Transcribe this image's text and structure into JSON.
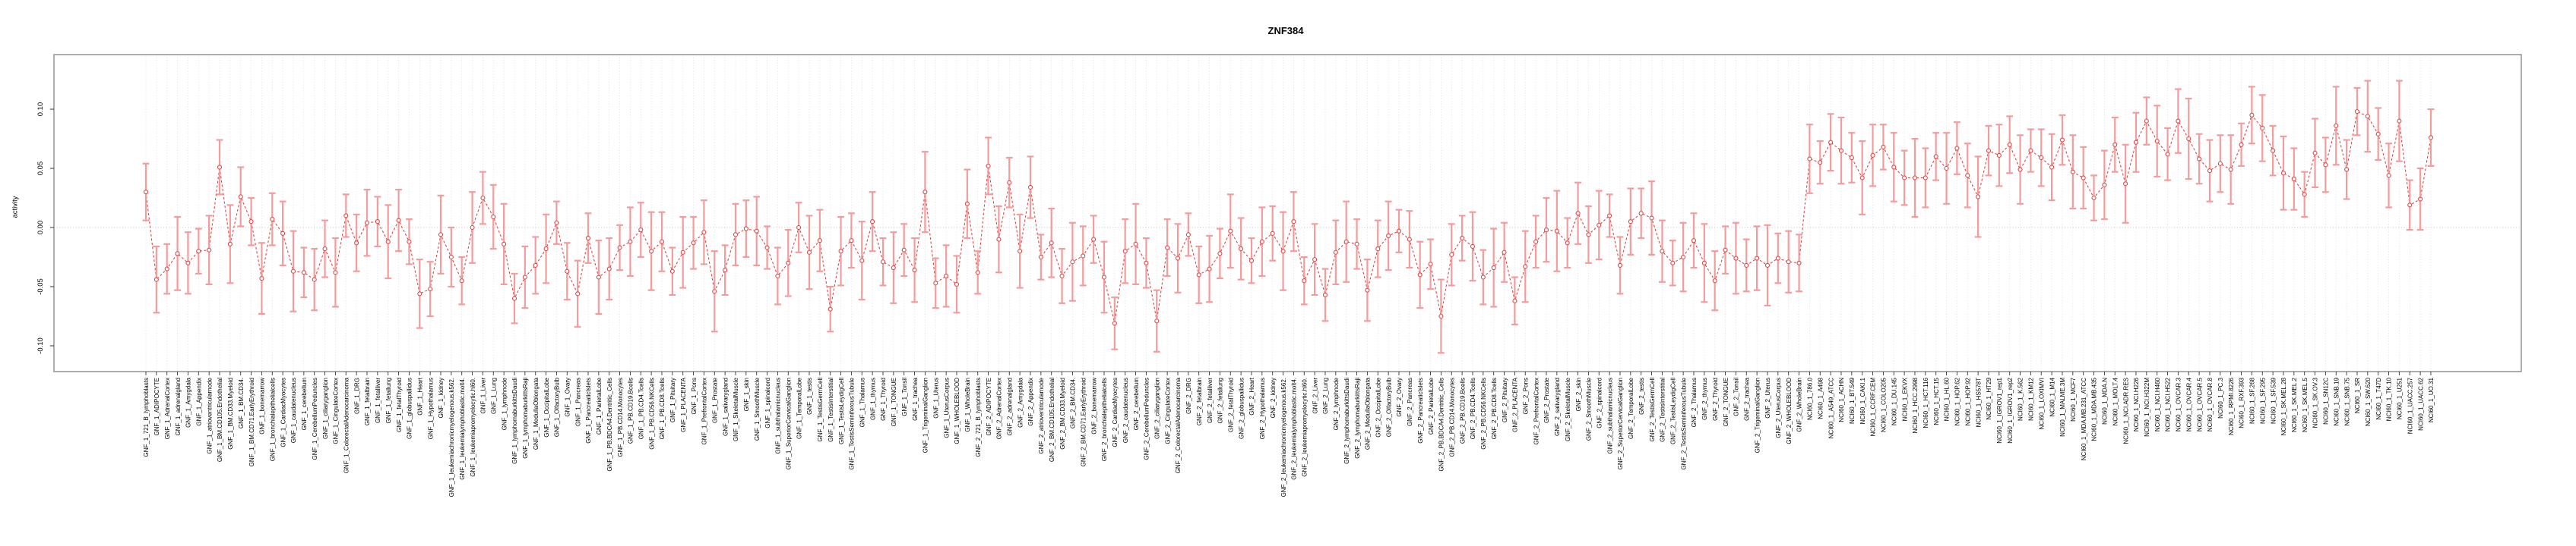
{
  "chart_data": {
    "type": "scatter",
    "title": "ZNF384",
    "ylabel": "activity",
    "xlabel": "",
    "yticks": [
      0.1,
      0.05,
      0.0,
      -0.05,
      -0.1
    ],
    "ylim": [
      -0.146,
      0.146
    ],
    "zero_line": 0.0,
    "grid": "vertical dotted gridline at every category; dotted horizontal line at y=0",
    "legend_position": "none",
    "error_bars": true,
    "colors": {
      "point": "#e04545",
      "line": "#e04545",
      "error_bar": "#f49b9b",
      "grid": "#d9d9d9",
      "zero_line": "#c4c4c4",
      "box": "#9a9a9a",
      "axis_tick": "#333333",
      "label_text": "#000000"
    },
    "categories": [
      "GNF_1_721_B_lymphoblasts",
      "GNF_1_ADIPOCYTE",
      "GNF_1_AdrenalCortex",
      "GNF_1_adrenalgland",
      "GNF_1_Amygdala",
      "GNF_1_Appendix",
      "GNF_1_atrioventricularnode",
      "GNF_1_BM.CD105.Endothelial",
      "GNF_1_BM.CD33.Myeloid",
      "GNF_1_BM.CD34.",
      "GNF_1_BM.CD71.EarlyErythroid",
      "GNF_1_bonemarrow",
      "GNF_1_bronchialepithelialcells",
      "GNF_1_CardiacMyocytes",
      "GNF_1_caudatenucleus",
      "GNF_1_cerebellum",
      "GNF_1_CerebellumPeduncles",
      "GNF_1_ciliaryganglion",
      "GNF_1_CingulateCortex",
      "GNF_1_ColorectalAdenocarcinoma",
      "GNF_1_DRG",
      "GNF_1_fetalbrain",
      "GNF_1_fetalliver",
      "GNF_1_fetallung",
      "GNF_1_fetalThyroid",
      "GNF_1_globuspallidus",
      "GNF_1_Heart",
      "GNF_1_Hypothalamus",
      "GNF_1_kidney",
      "GNF_1_leukemiachronicmyelogenous.k562.",
      "GNF_1_leukemialymphoblastic.molt4.",
      "GNF_1_leukemiapromyelocytic.hl60.",
      "GNF_1_Liver",
      "GNF_1_Lung",
      "GNF_1_lymphnode",
      "GNF_1_lymphomaburkittsDaudi",
      "GNF_1_lymphomaburkittsRaji",
      "GNF_1_MedullaOblongata",
      "GNF_1_OccipitalLobe",
      "GNF_1_OlfactoryBulb",
      "GNF_1_Ovary",
      "GNF_1_Pancreas",
      "GNF_1_PancreaticIslets",
      "GNF_1_ParietalLobe",
      "GNF_1_PB.BDCA4.Dentritic_Cells",
      "GNF_1_PB.CD14.Monocytes",
      "GNF_1_PB.CD19.Bcells",
      "GNF_1_PB.CD4.Tcells",
      "GNF_1_PB.CD56.NKCells",
      "GNF_1_PB.CD8.Tcells",
      "GNF_1_Pituitary",
      "GNF_1_PLACENTA",
      "GNF_1_Pons",
      "GNF_1_PrefrontalCortex",
      "GNF_1_Prostate",
      "GNF_1_salivarygland",
      "GNF_1_SkeletalMuscle",
      "GNF_1_skin",
      "GNF_1_SmoothMuscle",
      "GNF_1_spinalcord",
      "GNF_1_subthalamicnucleus",
      "GNF_1_SuperiorCervicalGanglion",
      "GNF_1_TemporalLobe",
      "GNF_1_testis",
      "GNF_1_TestisGermCell",
      "GNF_1_TestisInterstitial",
      "GNF_1_TestisLeydigCell",
      "GNF_1_TestisSeminiferousTubule",
      "GNF_1_Thalamus",
      "GNF_1_thymus",
      "GNF_1_Thyroid",
      "GNF_1_TONGUE",
      "GNF_1_Tonsil",
      "GNF_1_trachea",
      "GNF_1_TrigeminalGanglion",
      "GNF_1_Uterus",
      "GNF_1_UterusCorpus",
      "GNF_1_WHOLEBLOOD",
      "GNF_1_WholeBrain",
      "GNF_2_721_B_lymphoblasts",
      "GNF_2_ADIPOCYTE",
      "GNF_2_AdrenalCortex",
      "GNF_2_adrenalgland",
      "GNF_2_Amygdala",
      "GNF_2_Appendix",
      "GNF_2_atrioventricularnode",
      "GNF_2_BM.CD105.Endothelial",
      "GNF_2_BM.CD33.Myeloid",
      "GNF_2_BM.CD34.",
      "GNF_2_BM.CD71.EarlyErythroid",
      "GNF_2_bonemarrow",
      "GNF_2_bronchialepithelialcells",
      "GNF_2_CardiacMyocytes",
      "GNF_2_caudatenucleus",
      "GNF_2_cerebellum",
      "GNF_2_CerebellumPeduncles",
      "GNF_2_ciliaryganglion",
      "GNF_2_CingulateCortex",
      "GNF_2_ColorectalAdenocarcinoma",
      "GNF_2_DRG",
      "GNF_2_fetalbrain",
      "GNF_2_fetalliver",
      "GNF_2_fetallung",
      "GNF_2_fetalThyroid",
      "GNF_2_globuspallidus",
      "GNF_2_Heart",
      "GNF_2_Hypothalamus",
      "GNF_2_kidney",
      "GNF_2_leukemiachronicmyelogenous.k562.",
      "GNF_2_leukemialymphoblastic.molt4.",
      "GNF_2_leukemiapromyelocytic.hl60.",
      "GNF_2_Liver",
      "GNF_2_Lung",
      "GNF_2_lymphnode",
      "GNF_2_lymphomaburkittsDaudi",
      "GNF_2_lymphomaburkittsRaji",
      "GNF_2_MedullaOblongata",
      "GNF_2_OccipitalLobe",
      "GNF_2_OlfactoryBulb",
      "GNF_2_Ovary",
      "GNF_2_Pancreas",
      "GNF_2_PancreaticIslets",
      "GNF_2_ParietalLobe",
      "GNF_2_PB.BDCA4.Dentritic_Cells",
      "GNF_2_PB.CD14.Monocytes",
      "GNF_2_PB.CD19.Bcells",
      "GNF_2_PB.CD4.Tcells",
      "GNF_2_PB.CD56.NKCells",
      "GNF_2_PB.CD8.Tcells",
      "GNF_2_Pituitary",
      "GNF_2_PLACENTA",
      "GNF_2_Pons",
      "GNF_2_PrefrontalCortex",
      "GNF_2_Prostate",
      "GNF_2_salivarygland",
      "GNF_2_SkeletalMuscle",
      "GNF_2_skin",
      "GNF_2_SmoothMuscle",
      "GNF_2_spinalcord",
      "GNF_2_subthalamicnucleus",
      "GNF_2_SuperiorCervicalGanglion",
      "GNF_2_TemporalLobe",
      "GNF_2_testis",
      "GNF_2_TestisGermCell",
      "GNF_2_TestisInterstitial",
      "GNF_2_TestisLeydigCell",
      "GNF_2_TestisSeminiferousTubule",
      "GNF_2_Thalamus",
      "GNF_2_thymus",
      "GNF_2_Thyroid",
      "GNF_2_TONGUE",
      "GNF_2_Tonsil",
      "GNF_2_trachea",
      "GNF_2_TrigeminalGanglion",
      "GNF_2_Uterus",
      "GNF_2_UterusCorpus",
      "GNF_2_WHOLEBLOOD",
      "GNF_2_WholeBrain",
      "NCI60_1_786.0",
      "NCI60_1_A498",
      "NCI60_1_A549_ATCC",
      "NCI60_1_ACHN",
      "NCI60_1_BT.549",
      "NCI60_1_CAKI.1",
      "NCI60_1_CCRF.CEM",
      "NCI60_1_COLO205",
      "NCI60_1_DU.145",
      "NCI60_1_EKVX",
      "NCI60_1_HCC.2998",
      "NCI60_1_HCT.116",
      "NCI60_1_HCT.15",
      "NCI60_1_HL.60",
      "NCI60_1_HOP.62",
      "NCI60_1_HOP.92",
      "NCI60_1_HS578T",
      "NCI60_1_HT29",
      "NCI60_1_IGROV1_rep1",
      "NCI60_1_IGROV1_rep2",
      "NCI60_1_K.562",
      "NCI60_1_KM12",
      "NCI60_1_LOXIMVI",
      "NCI60_1_M14",
      "NCI60_1_MALME.3M",
      "NCI60_1_MCF7",
      "NCI60_1_MDA.MB.231_ATCC",
      "NCI60_1_MDA.MB.435",
      "NCI60_1_MDA.N",
      "NCI60_1_MOLT.4",
      "NCI60_1_NCI.ADR.RES",
      "NCI60_1_NCI.H226",
      "NCI60_1_NCI.H322M",
      "NCI60_1_NCI.H460",
      "NCI60_1_NCI.H522",
      "NCI60_1_OVCAR.3",
      "NCI60_1_OVCAR.4",
      "NCI60_1_OVCAR.5",
      "NCI60_1_OVCAR.8",
      "NCI60_1_PC.3",
      "NCI60_1_RPMI.8226",
      "NCI60_1_RXF.393",
      "NCI60_1_SF.268",
      "NCI60_1_SF.295",
      "NCI60_1_SF.539",
      "NCI60_1_SK.MEL.28",
      "NCI60_1_SK.MEL.2",
      "NCI60_1_SK.MEL.5",
      "NCI60_1_SK.OV.3",
      "NCI60_1_SN12C",
      "NCI60_1_SNB.19",
      "NCI60_1_SNB.75",
      "NCI60_1_SR",
      "NCI60_1_SW.620",
      "NCI60_1_T47D",
      "NCI60_1_TK.10",
      "NCI60_1_U251",
      "NCI60_1_UACC.257",
      "NCI60_1_UACC.62",
      "NCI60_1_UO.31"
    ],
    "values": [
      0.03,
      -0.044,
      -0.035,
      -0.022,
      -0.03,
      -0.02,
      -0.019,
      0.051,
      -0.014,
      0.026,
      0.005,
      -0.043,
      0.007,
      -0.005,
      -0.037,
      -0.038,
      -0.044,
      -0.018,
      -0.038,
      0.01,
      -0.013,
      0.004,
      0.005,
      -0.012,
      0.006,
      -0.012,
      -0.056,
      -0.052,
      -0.006,
      -0.025,
      -0.045,
      0.0,
      0.025,
      0.009,
      -0.014,
      -0.06,
      -0.042,
      -0.032,
      -0.018,
      0.004,
      -0.037,
      -0.056,
      -0.009,
      -0.042,
      -0.035,
      -0.017,
      -0.012,
      -0.002,
      -0.02,
      -0.012,
      -0.037,
      -0.021,
      -0.013,
      -0.004,
      -0.054,
      -0.036,
      -0.006,
      -0.001,
      -0.003,
      -0.017,
      -0.041,
      -0.03,
      0.0,
      -0.021,
      -0.011,
      -0.069,
      -0.02,
      -0.011,
      -0.028,
      0.005,
      -0.029,
      -0.034,
      -0.019,
      -0.036,
      0.03,
      -0.047,
      -0.041,
      -0.048,
      0.02,
      -0.038,
      0.052,
      -0.01,
      0.038,
      -0.02,
      0.034,
      -0.025,
      -0.013,
      -0.041,
      -0.029,
      -0.024,
      -0.01,
      -0.042,
      -0.081,
      -0.02,
      -0.014,
      -0.03,
      -0.079,
      -0.017,
      -0.026,
      -0.006,
      -0.04,
      -0.035,
      -0.022,
      -0.003,
      -0.018,
      -0.028,
      -0.012,
      -0.005,
      -0.02,
      0.005,
      -0.045,
      -0.027,
      -0.057,
      -0.021,
      -0.012,
      -0.014,
      -0.053,
      -0.018,
      -0.007,
      -0.003,
      -0.01,
      -0.04,
      -0.031,
      -0.075,
      -0.023,
      -0.009,
      -0.016,
      -0.042,
      -0.034,
      -0.021,
      -0.062,
      -0.033,
      -0.012,
      -0.002,
      -0.003,
      -0.013,
      0.012,
      -0.006,
      0.002,
      0.01,
      -0.032,
      0.005,
      0.012,
      0.008,
      -0.02,
      -0.03,
      -0.025,
      -0.011,
      -0.03,
      -0.045,
      -0.019,
      -0.026,
      -0.032,
      -0.026,
      -0.032,
      -0.026,
      -0.029,
      -0.03,
      0.058,
      0.055,
      0.072,
      0.065,
      0.059,
      0.042,
      0.061,
      0.068,
      0.051,
      0.042,
      0.042,
      0.042,
      0.06,
      0.05,
      0.067,
      0.044,
      0.026,
      0.065,
      0.061,
      0.07,
      0.049,
      0.065,
      0.059,
      0.051,
      0.074,
      0.047,
      0.042,
      0.025,
      0.036,
      0.07,
      0.037,
      0.072,
      0.09,
      0.073,
      0.062,
      0.09,
      0.075,
      0.058,
      0.048,
      0.054,
      0.049,
      0.07,
      0.095,
      0.084,
      0.065,
      0.046,
      0.041,
      0.028,
      0.063,
      0.053,
      0.086,
      0.049,
      0.098,
      0.094,
      0.079,
      0.044,
      0.09,
      0.019,
      0.024,
      0.076
    ],
    "errors": [
      0.024,
      0.028,
      0.021,
      0.031,
      0.026,
      0.019,
      0.029,
      0.023,
      0.033,
      0.025,
      0.02,
      0.03,
      0.022,
      0.027,
      0.034,
      0.021,
      0.026,
      0.024,
      0.029,
      0.018,
      0.024,
      0.028,
      0.021,
      0.031,
      0.026,
      0.019,
      0.029,
      0.023,
      0.033,
      0.025,
      0.02,
      0.03,
      0.022,
      0.027,
      0.034,
      0.021,
      0.026,
      0.024,
      0.029,
      0.018,
      0.024,
      0.028,
      0.021,
      0.031,
      0.026,
      0.019,
      0.029,
      0.023,
      0.033,
      0.025,
      0.02,
      0.03,
      0.022,
      0.027,
      0.034,
      0.021,
      0.026,
      0.024,
      0.029,
      0.018,
      0.024,
      0.028,
      0.021,
      0.031,
      0.026,
      0.019,
      0.029,
      0.023,
      0.033,
      0.025,
      0.02,
      0.03,
      0.022,
      0.027,
      0.034,
      0.021,
      0.026,
      0.024,
      0.029,
      0.018,
      0.024,
      0.028,
      0.021,
      0.031,
      0.026,
      0.019,
      0.029,
      0.023,
      0.033,
      0.025,
      0.02,
      0.03,
      0.022,
      0.027,
      0.034,
      0.021,
      0.026,
      0.024,
      0.029,
      0.018,
      0.024,
      0.028,
      0.021,
      0.031,
      0.026,
      0.019,
      0.029,
      0.023,
      0.033,
      0.025,
      0.02,
      0.03,
      0.022,
      0.027,
      0.034,
      0.021,
      0.026,
      0.024,
      0.029,
      0.018,
      0.024,
      0.028,
      0.021,
      0.031,
      0.026,
      0.019,
      0.029,
      0.023,
      0.033,
      0.025,
      0.02,
      0.03,
      0.022,
      0.027,
      0.034,
      0.021,
      0.026,
      0.024,
      0.029,
      0.018,
      0.024,
      0.028,
      0.021,
      0.031,
      0.026,
      0.019,
      0.029,
      0.023,
      0.033,
      0.025,
      0.02,
      0.03,
      0.022,
      0.027,
      0.034,
      0.021,
      0.026,
      0.024,
      0.029,
      0.018,
      0.024,
      0.028,
      0.021,
      0.031,
      0.026,
      0.019,
      0.029,
      0.023,
      0.033,
      0.025,
      0.02,
      0.03,
      0.022,
      0.027,
      0.034,
      0.021,
      0.026,
      0.024,
      0.029,
      0.018,
      0.024,
      0.028,
      0.021,
      0.031,
      0.026,
      0.019,
      0.029,
      0.023,
      0.033,
      0.025,
      0.02,
      0.03,
      0.022,
      0.027,
      0.034,
      0.021,
      0.026,
      0.024,
      0.029,
      0.018,
      0.024,
      0.028,
      0.021,
      0.031,
      0.026,
      0.019,
      0.029,
      0.023,
      0.033,
      0.025,
      0.02,
      0.03,
      0.022,
      0.027,
      0.034,
      0.021,
      0.026,
      0.024
    ]
  }
}
